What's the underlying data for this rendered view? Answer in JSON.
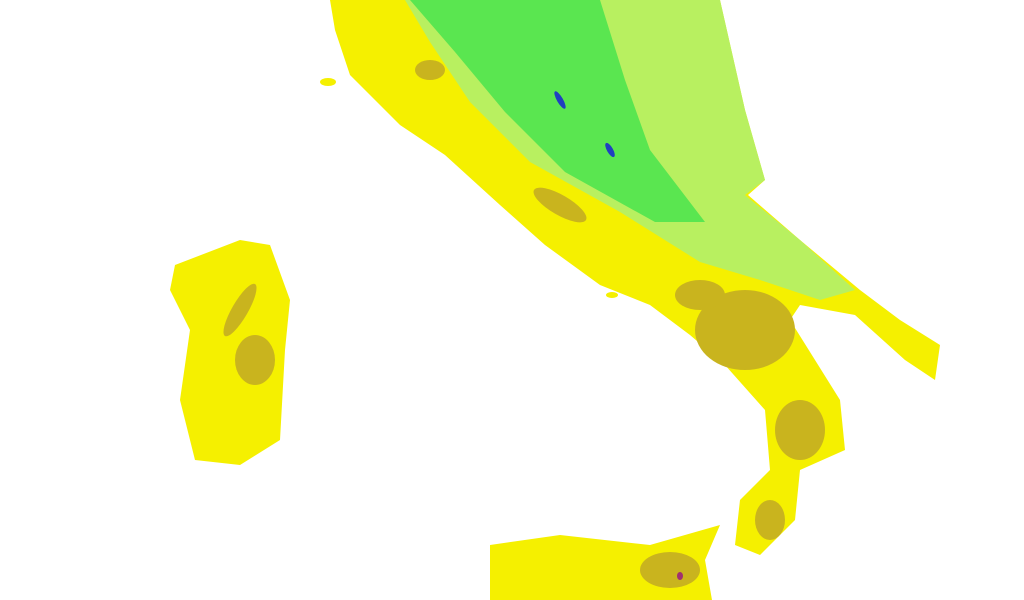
{
  "map": {
    "region": "Southern Italy",
    "legend": null,
    "colors": {
      "background": "#ffffff",
      "lowland": "#f5f000",
      "hills": "#c9b41e",
      "mid_elevation": "#b8f060",
      "high_elevation": "#5ae650",
      "peak": "#2040c0",
      "etna": "#a03070"
    }
  }
}
